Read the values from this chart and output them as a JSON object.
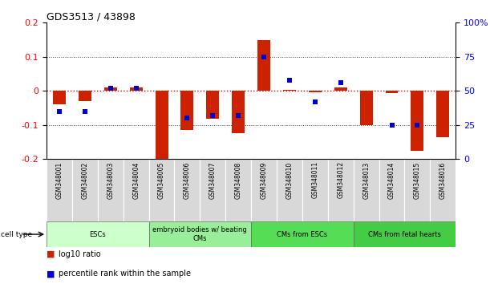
{
  "title": "GDS3513 / 43898",
  "samples": [
    "GSM348001",
    "GSM348002",
    "GSM348003",
    "GSM348004",
    "GSM348005",
    "GSM348006",
    "GSM348007",
    "GSM348008",
    "GSM348009",
    "GSM348010",
    "GSM348011",
    "GSM348012",
    "GSM348013",
    "GSM348014",
    "GSM348015",
    "GSM348016"
  ],
  "log10_ratio": [
    -0.04,
    -0.03,
    0.01,
    0.01,
    -0.2,
    -0.115,
    -0.082,
    -0.125,
    0.148,
    0.003,
    -0.005,
    0.01,
    -0.1,
    -0.006,
    -0.175,
    -0.135
  ],
  "percentile_rank": [
    35,
    35,
    52,
    52,
    null,
    30,
    32,
    32,
    75,
    58,
    42,
    56,
    null,
    25,
    25,
    null
  ],
  "cell_type_groups": [
    {
      "label": "ESCs",
      "start": 0,
      "end": 3,
      "color": "#ccffcc"
    },
    {
      "label": "embryoid bodies w/ beating\nCMs",
      "start": 4,
      "end": 7,
      "color": "#99ee99"
    },
    {
      "label": "CMs from ESCs",
      "start": 8,
      "end": 11,
      "color": "#55dd55"
    },
    {
      "label": "CMs from fetal hearts",
      "start": 12,
      "end": 15,
      "color": "#44cc44"
    }
  ],
  "bar_color": "#cc2200",
  "square_color": "#0000cc",
  "ylim_left": [
    -0.2,
    0.2
  ],
  "ylim_right": [
    0,
    100
  ],
  "yticks_left": [
    -0.2,
    -0.1,
    0.0,
    0.1,
    0.2
  ],
  "yticks_right": [
    0,
    25,
    50,
    75,
    100
  ],
  "hline_color": "#cc0000",
  "dotted_color": "#444444",
  "bar_width": 0.5
}
